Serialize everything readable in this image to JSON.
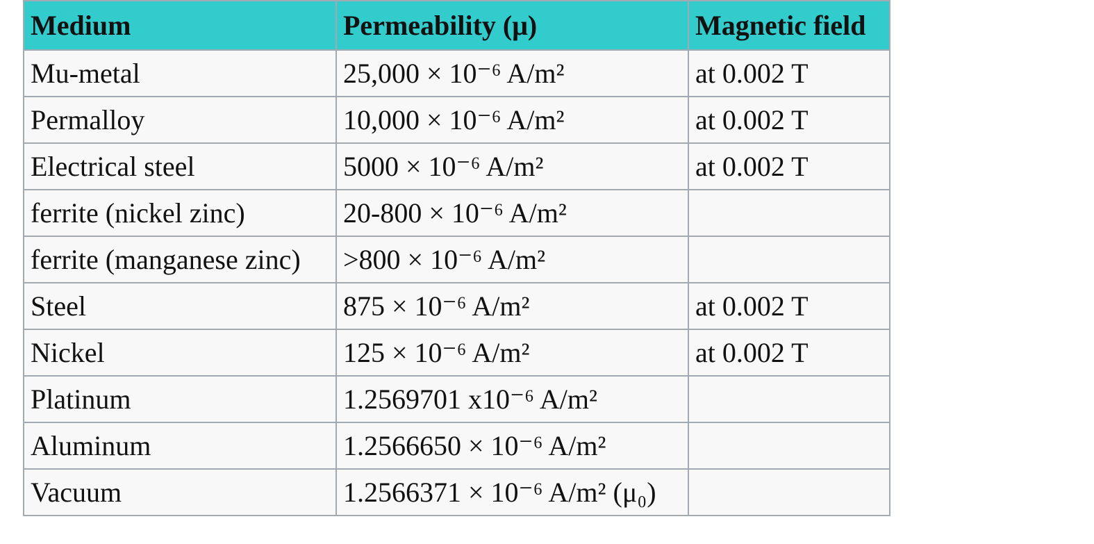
{
  "table": {
    "header": [
      "Medium",
      "Permeability (μ)",
      "Magnetic field"
    ],
    "rows": [
      [
        "Mu-metal",
        "25,000 × 10⁻⁶ A/m²",
        "at 0.002 T"
      ],
      [
        "Permalloy",
        "10,000 × 10⁻⁶ A/m²",
        "at 0.002 T"
      ],
      [
        "Electrical steel",
        "5000 × 10⁻⁶ A/m²",
        "at 0.002 T"
      ],
      [
        "ferrite (nickel zinc)",
        "20-800 × 10⁻⁶ A/m²",
        null
      ],
      [
        "ferrite (manganese zinc)",
        ">800 × 10⁻⁶ A/m²",
        null
      ],
      [
        "Steel",
        "875 × 10⁻⁶ A/m²",
        "at 0.002 T"
      ],
      [
        "Nickel",
        "125 × 10⁻⁶ A/m²",
        "at 0.002 T"
      ],
      [
        "Platinum",
        "1.2569701 x10⁻⁶ A/m²",
        null
      ],
      [
        "Aluminum",
        "1.2566650 × 10⁻⁶ A/m²",
        null
      ],
      [
        "Vacuum",
        "1.2566371 × 10⁻⁶ A/m² (μ₀)",
        null
      ]
    ]
  }
}
